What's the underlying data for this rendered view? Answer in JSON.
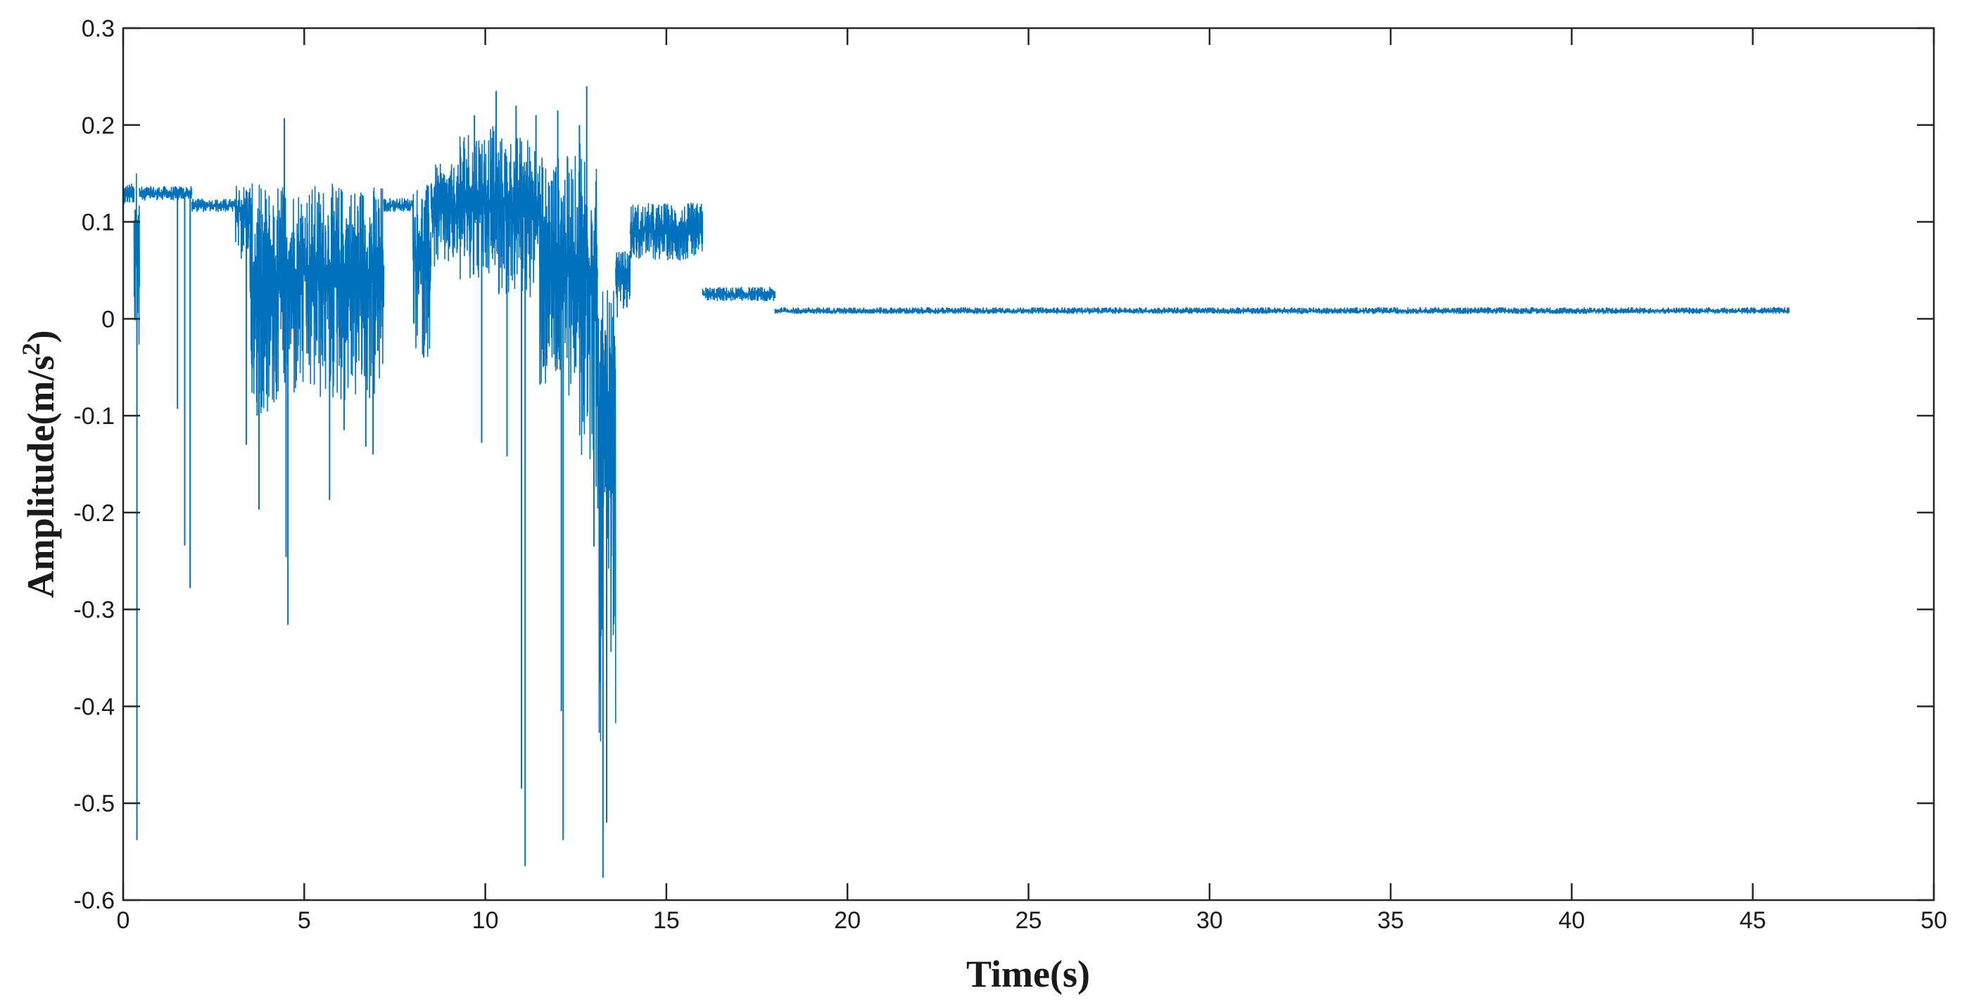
{
  "chart_data": {
    "type": "line",
    "xlabel": "Time(s)",
    "ylabel": "Amplitude(m/s",
    "ylabel_superscript": "2",
    "ylabel_close": ")",
    "xlim": [
      0,
      50
    ],
    "ylim": [
      -0.6,
      0.3
    ],
    "xticks": [
      "0",
      "5",
      "10",
      "15",
      "20",
      "25",
      "30",
      "35",
      "40",
      "45",
      "50"
    ],
    "yticks": [
      "0.3",
      "0.2",
      "0.1",
      "0",
      "-0.1",
      "-0.2",
      "-0.3",
      "-0.4",
      "-0.5",
      "-0.6"
    ],
    "grid": false,
    "series_color": "#0072BD",
    "series": [
      {
        "segments": [
          {
            "x": [
              0.0,
              0.3
            ],
            "mean": 0.128,
            "band": [
              0.118,
              0.14
            ]
          },
          {
            "x": [
              0.3,
              0.45
            ],
            "mean": 0.1,
            "band": [
              -0.08,
              0.155
            ]
          },
          {
            "x": [
              0.45,
              1.9
            ],
            "mean": 0.129,
            "band": [
              0.122,
              0.137
            ]
          },
          {
            "x": [
              1.9,
              3.1
            ],
            "mean": 0.117,
            "band": [
              0.11,
              0.124
            ]
          },
          {
            "x": [
              3.1,
              3.5
            ],
            "mean": 0.11,
            "band": [
              0.06,
              0.14
            ]
          },
          {
            "x": [
              3.5,
              4.3
            ],
            "mean": 0.04,
            "band": [
              -0.1,
              0.14
            ]
          },
          {
            "x": [
              4.3,
              7.2
            ],
            "mean": 0.05,
            "band": [
              -0.09,
              0.14
            ]
          },
          {
            "x": [
              7.2,
              8.0
            ],
            "mean": 0.117,
            "band": [
              0.11,
              0.125
            ]
          },
          {
            "x": [
              8.0,
              8.5
            ],
            "mean": 0.07,
            "band": [
              -0.04,
              0.14
            ]
          },
          {
            "x": [
              8.5,
              9.3
            ],
            "mean": 0.115,
            "band": [
              0.05,
              0.16
            ]
          },
          {
            "x": [
              9.3,
              10.3
            ],
            "mean": 0.12,
            "band": [
              0.04,
              0.2
            ]
          },
          {
            "x": [
              10.3,
              11.5
            ],
            "mean": 0.12,
            "band": [
              0.02,
              0.19
            ]
          },
          {
            "x": [
              11.5,
              12.6
            ],
            "mean": 0.06,
            "band": [
              -0.08,
              0.17
            ]
          },
          {
            "x": [
              12.6,
              13.1
            ],
            "mean": 0.05,
            "band": [
              -0.18,
              0.19
            ]
          },
          {
            "x": [
              13.1,
              13.6
            ],
            "mean": -0.1,
            "band": [
              -0.45,
              0.03
            ]
          },
          {
            "x": [
              13.6,
              14.0
            ],
            "mean": 0.05,
            "band": [
              0.0,
              0.07
            ]
          },
          {
            "x": [
              14.0,
              16.0
            ],
            "mean": 0.09,
            "band": [
              0.06,
              0.12
            ]
          },
          {
            "x": [
              16.0,
              18.0
            ],
            "mean": 0.025,
            "band": [
              0.018,
              0.033
            ]
          },
          {
            "x": [
              18.0,
              46.0
            ],
            "mean": 0.008,
            "band": [
              0.005,
              0.012
            ]
          }
        ],
        "spikes": [
          {
            "x": 0.38,
            "y": -0.538
          },
          {
            "x": 1.5,
            "y": -0.093
          },
          {
            "x": 1.7,
            "y": -0.234
          },
          {
            "x": 1.85,
            "y": -0.278
          },
          {
            "x": 3.4,
            "y": -0.13
          },
          {
            "x": 3.7,
            "y": -0.1
          },
          {
            "x": 3.75,
            "y": -0.197
          },
          {
            "x": 4.45,
            "y": 0.207
          },
          {
            "x": 4.5,
            "y": -0.246
          },
          {
            "x": 4.55,
            "y": -0.316
          },
          {
            "x": 5.7,
            "y": -0.187
          },
          {
            "x": 6.1,
            "y": -0.115
          },
          {
            "x": 6.7,
            "y": -0.132
          },
          {
            "x": 6.9,
            "y": -0.14
          },
          {
            "x": 8.3,
            "y": -0.04
          },
          {
            "x": 9.7,
            "y": 0.21
          },
          {
            "x": 9.9,
            "y": -0.128
          },
          {
            "x": 10.3,
            "y": 0.235
          },
          {
            "x": 10.6,
            "y": -0.142
          },
          {
            "x": 10.85,
            "y": 0.22
          },
          {
            "x": 11.0,
            "y": -0.485
          },
          {
            "x": 11.1,
            "y": -0.565
          },
          {
            "x": 11.4,
            "y": 0.21
          },
          {
            "x": 12.0,
            "y": 0.215
          },
          {
            "x": 12.1,
            "y": -0.405
          },
          {
            "x": 12.15,
            "y": -0.538
          },
          {
            "x": 12.6,
            "y": 0.2
          },
          {
            "x": 12.8,
            "y": 0.24
          },
          {
            "x": 13.0,
            "y": -0.235
          },
          {
            "x": 13.25,
            "y": -0.577
          },
          {
            "x": 13.35,
            "y": -0.52
          }
        ]
      }
    ]
  }
}
